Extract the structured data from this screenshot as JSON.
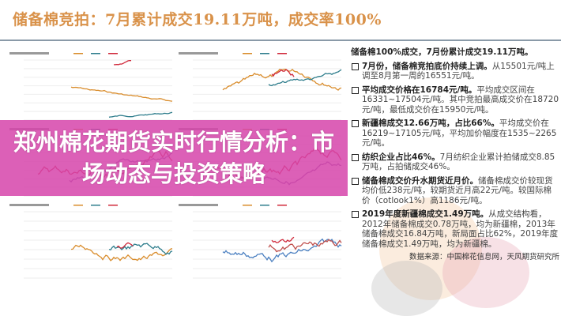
{
  "slide": {
    "title": "储备棉竞拍：7月累计成交19.11万吨，成交率100%",
    "lead": "储备棉100%成交，7月份累计成交19.11万吨。",
    "items": [
      {
        "bold": "7月份，储备棉竞拍底价持续上调。",
        "rest": "从15501元/吨上调至8月第一周的16551元/吨。"
      },
      {
        "bold": "平均成交价格在16784元/吨。",
        "rest": "平均成交区间在16331~17504元/吨。其中竞拍最高成交价在18720元/吨，最低成交价在15950元/吨。"
      },
      {
        "bold": "新疆棉成交12.66万吨，占比66%。",
        "rest": "平均成交价在16219~17105元/吨，平均加价幅度在1535~2265元/吨。"
      },
      {
        "bold": "纺织企业占比46%。",
        "rest": "7月纺织企业累计拍储成交8.85万吨，占拍储成交46%。"
      },
      {
        "bold": "储备棉成交价升水期货近月价。",
        "rest": "储备棉成交价较现货均价低238元/吨，较期货近月高22元/吨。较国际棉价（cotlook1%）高1186元/吨。"
      },
      {
        "bold": "2019年度新疆棉成交1.49万吨。",
        "rest": "从成交结构看，2012年储备棉成交0.78万吨，均为新疆棉，2013年储备棉成交16.84万吨，新局面占比62%，2019年度储备棉成交1.49万吨，均为新疆棉。"
      }
    ],
    "source": "数据来源：中国棉花信息网，天风期货研究所"
  },
  "banner": {
    "headline": "郑州棉花期货实时行情分析：市场动态与投资策略"
  },
  "colors": {
    "title": "#d9924a",
    "banner": "#d644aa",
    "series_orange": "#d98c2b",
    "series_teal": "#2e7d8c",
    "series_red": "#d0283a",
    "series_blue": "#4a7fc0"
  }
}
